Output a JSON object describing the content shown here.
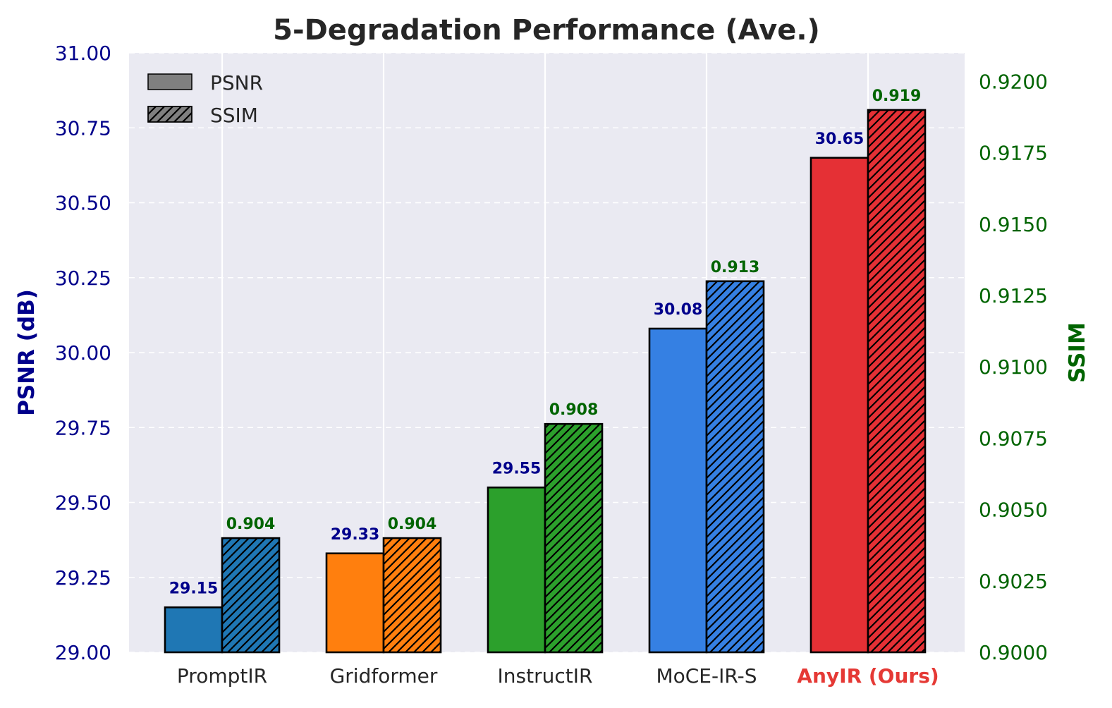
{
  "chart_data": {
    "type": "bar",
    "title": "5-Degradation Performance (Ave.)",
    "categories": [
      "PromptIR",
      "Gridformer",
      "InstructIR",
      "MoCE-IR-S",
      "AnyIR (Ours)"
    ],
    "highlight_category": "AnyIR (Ours)",
    "colors": [
      "#1f77b4",
      "#ff7f0e",
      "#2ca02c",
      "#3580e3",
      "#e53035"
    ],
    "series": [
      {
        "name": "PSNR",
        "axis": "left",
        "hatch": "none",
        "values": [
          29.15,
          29.33,
          29.55,
          30.08,
          30.65
        ],
        "labels": [
          "29.15",
          "29.33",
          "29.55",
          "30.08",
          "30.65"
        ]
      },
      {
        "name": "SSIM",
        "axis": "right",
        "hatch": "diagonal",
        "values": [
          0.904,
          0.904,
          0.908,
          0.913,
          0.919
        ],
        "labels": [
          "0.904",
          "0.904",
          "0.908",
          "0.913",
          "0.919"
        ]
      }
    ],
    "ylabel": "PSNR (dB)",
    "ylim": [
      29.0,
      31.0
    ],
    "yticks": [
      "29.00",
      "29.25",
      "29.50",
      "29.75",
      "30.00",
      "30.25",
      "30.50",
      "30.75",
      "31.00"
    ],
    "y2label": "SSIM",
    "y2lim": [
      0.9,
      0.921
    ],
    "y2ticks": [
      "0.9000",
      "0.9025",
      "0.9050",
      "0.9075",
      "0.9100",
      "0.9125",
      "0.9150",
      "0.9175",
      "0.9200"
    ],
    "legend": {
      "position": "top-left",
      "entries": [
        "PSNR",
        "SSIM"
      ]
    },
    "colors_meta": {
      "left_axis": "#00008b",
      "right_axis": "#006400",
      "background": "#eaeaf2",
      "highlight": "#e53935"
    }
  }
}
